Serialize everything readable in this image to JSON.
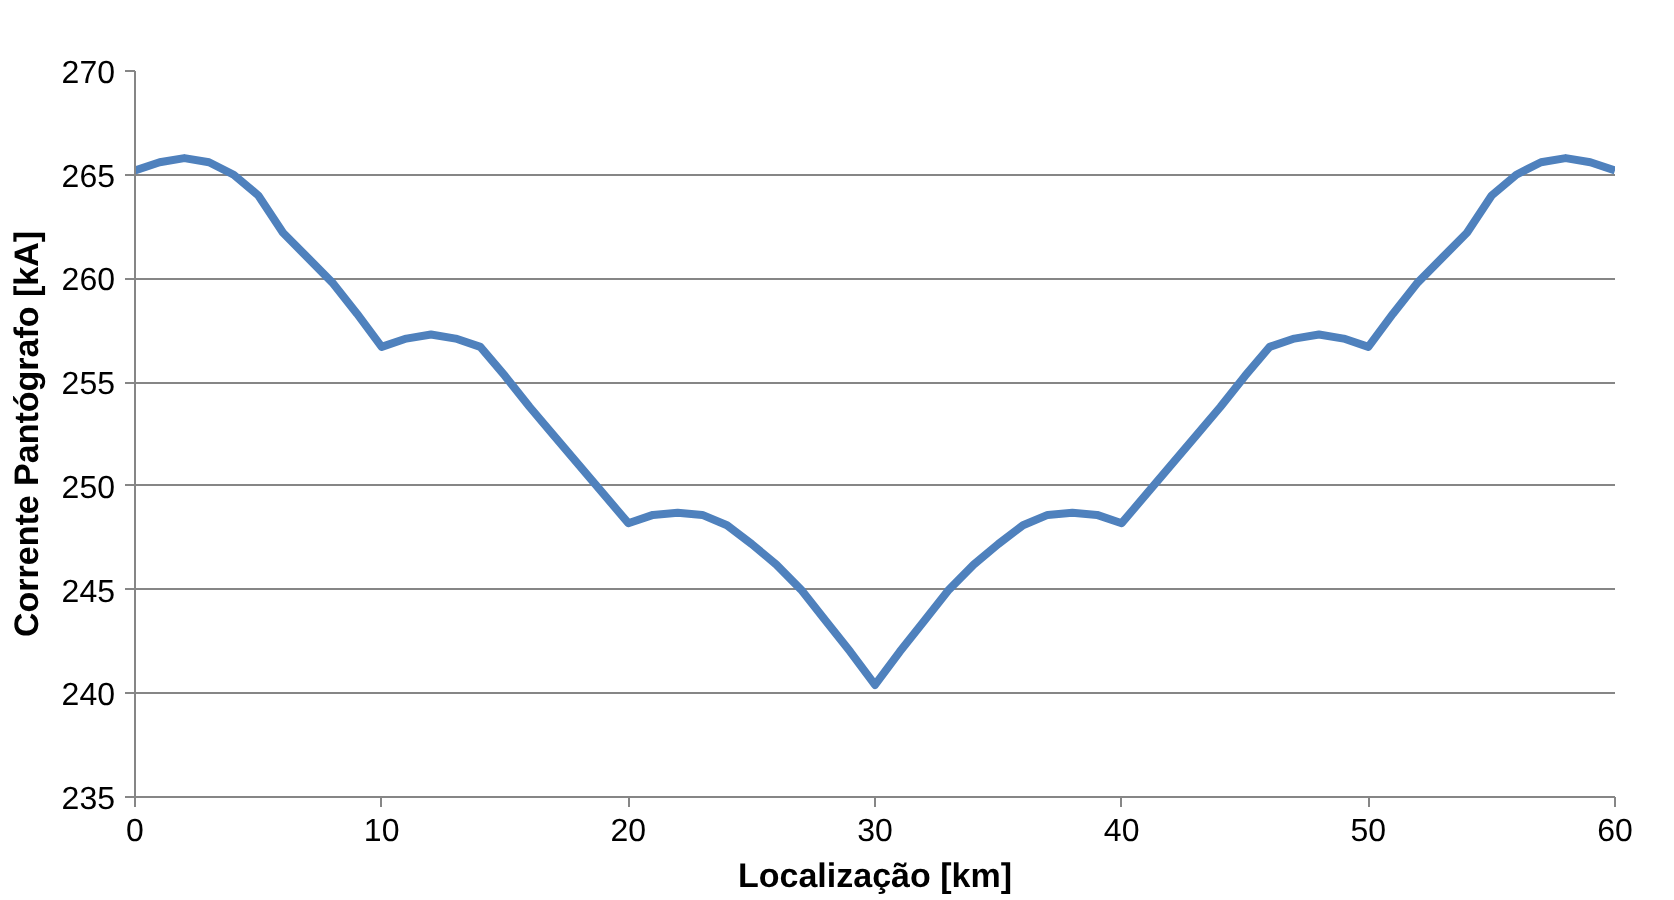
{
  "chart_data": {
    "type": "line",
    "xlabel": "Localização [km]",
    "ylabel": "Corrente Pantógrafo [kA]",
    "x": [
      0,
      1,
      2,
      3,
      4,
      5,
      6,
      7,
      8,
      9,
      10,
      11,
      12,
      13,
      14,
      15,
      16,
      17,
      18,
      19,
      20,
      21,
      22,
      23,
      24,
      25,
      26,
      27,
      28,
      29,
      30,
      31,
      32,
      33,
      34,
      35,
      36,
      37,
      38,
      39,
      40,
      41,
      42,
      43,
      44,
      45,
      46,
      47,
      48,
      49,
      50,
      51,
      52,
      53,
      54,
      55,
      56,
      57,
      58,
      59,
      60
    ],
    "series": [
      {
        "color": "#4f81bd",
        "values": [
          265.2,
          265.6,
          265.8,
          265.6,
          265.0,
          264.0,
          262.2,
          261.0,
          259.8,
          258.3,
          256.7,
          257.1,
          257.3,
          257.1,
          256.7,
          255.3,
          253.8,
          252.4,
          251.0,
          249.6,
          248.2,
          248.6,
          248.7,
          248.6,
          248.1,
          247.2,
          246.2,
          245.0,
          243.5,
          242.0,
          240.4,
          242.0,
          243.5,
          245.0,
          246.2,
          247.2,
          248.1,
          248.6,
          248.7,
          248.6,
          248.2,
          249.6,
          251.0,
          252.4,
          253.8,
          255.3,
          256.7,
          257.1,
          257.3,
          257.1,
          256.7,
          258.3,
          259.8,
          261.0,
          262.2,
          264.0,
          265.0,
          265.6,
          265.8,
          265.6,
          265.2
        ]
      }
    ],
    "xlim": [
      0,
      60
    ],
    "xticks": [
      0,
      10,
      20,
      30,
      40,
      50,
      60
    ],
    "ylim": [
      235,
      270
    ],
    "yticks": [
      235,
      240,
      245,
      250,
      255,
      260,
      265,
      270
    ],
    "grid": "y",
    "marker": "none",
    "line_style": "solid"
  }
}
